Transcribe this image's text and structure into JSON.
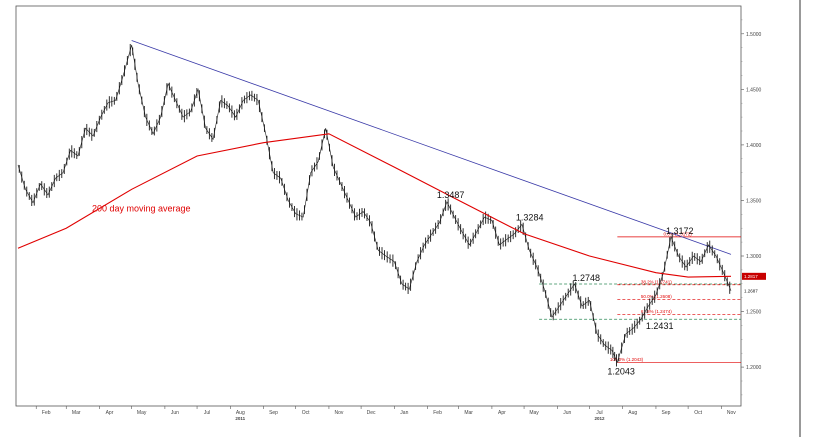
{
  "chart_data": {
    "type": "line",
    "subtype": "ohlc-price",
    "title": "",
    "xlabel": "",
    "ylabel": "",
    "ylim": [
      1.165,
      1.525
    ],
    "y_ticks": [
      "1.5000",
      "1.4500",
      "1.4000",
      "1.3500",
      "1.3000",
      "1.2500",
      "1.2000"
    ],
    "x_ticks": [
      "Feb",
      "Mar",
      "Apr",
      "May",
      "Jun",
      "Jul",
      "Aug",
      "Sep",
      "Oct",
      "Nov",
      "Dec",
      "Jan",
      "Feb",
      "Mar",
      "Apr",
      "May",
      "Jun",
      "Jul",
      "Aug",
      "Sep",
      "Oct",
      "Nov"
    ],
    "x_years": [
      {
        "label": "2011",
        "under": 6
      },
      {
        "label": "2012",
        "under": 17
      }
    ],
    "x_domain": [
      "2011-01-15",
      "2012-11-10"
    ],
    "grid": false,
    "legend": "none",
    "colors": {
      "price": "#1a1a1a",
      "ma": "#e00000",
      "trend": "#3a3aa8",
      "fib": "#e00000",
      "support": "#2e8b57",
      "tag_bg": "#c80000"
    },
    "price_path": [
      [
        "2011-01-15",
        1.382
      ],
      [
        "2011-01-22",
        1.36
      ],
      [
        "2011-01-29",
        1.348
      ],
      [
        "2011-02-05",
        1.365
      ],
      [
        "2011-02-12",
        1.355
      ],
      [
        "2011-02-19",
        1.37
      ],
      [
        "2011-02-26",
        1.375
      ],
      [
        "2011-03-05",
        1.395
      ],
      [
        "2011-03-12",
        1.39
      ],
      [
        "2011-03-19",
        1.415
      ],
      [
        "2011-03-26",
        1.408
      ],
      [
        "2011-04-02",
        1.425
      ],
      [
        "2011-04-09",
        1.438
      ],
      [
        "2011-04-16",
        1.44
      ],
      [
        "2011-04-23",
        1.462
      ],
      [
        "2011-05-01",
        1.49
      ],
      [
        "2011-05-07",
        1.455
      ],
      [
        "2011-05-14",
        1.425
      ],
      [
        "2011-05-21",
        1.41
      ],
      [
        "2011-05-28",
        1.425
      ],
      [
        "2011-06-04",
        1.455
      ],
      [
        "2011-06-11",
        1.44
      ],
      [
        "2011-06-18",
        1.425
      ],
      [
        "2011-06-25",
        1.43
      ],
      [
        "2011-07-02",
        1.45
      ],
      [
        "2011-07-09",
        1.415
      ],
      [
        "2011-07-16",
        1.405
      ],
      [
        "2011-07-23",
        1.44
      ],
      [
        "2011-07-30",
        1.435
      ],
      [
        "2011-08-06",
        1.425
      ],
      [
        "2011-08-13",
        1.44
      ],
      [
        "2011-08-20",
        1.445
      ],
      [
        "2011-08-27",
        1.44
      ],
      [
        "2011-09-03",
        1.41
      ],
      [
        "2011-09-10",
        1.375
      ],
      [
        "2011-09-17",
        1.37
      ],
      [
        "2011-09-24",
        1.35
      ],
      [
        "2011-10-01",
        1.338
      ],
      [
        "2011-10-08",
        1.335
      ],
      [
        "2011-10-15",
        1.375
      ],
      [
        "2011-10-22",
        1.385
      ],
      [
        "2011-10-29",
        1.415
      ],
      [
        "2011-11-05",
        1.38
      ],
      [
        "2011-11-12",
        1.365
      ],
      [
        "2011-11-19",
        1.35
      ],
      [
        "2011-11-26",
        1.335
      ],
      [
        "2011-12-03",
        1.34
      ],
      [
        "2011-12-10",
        1.33
      ],
      [
        "2011-12-17",
        1.305
      ],
      [
        "2011-12-24",
        1.3
      ],
      [
        "2012-01-01",
        1.295
      ],
      [
        "2012-01-08",
        1.275
      ],
      [
        "2012-01-15",
        1.27
      ],
      [
        "2012-01-22",
        1.295
      ],
      [
        "2012-01-29",
        1.31
      ],
      [
        "2012-02-05",
        1.32
      ],
      [
        "2012-02-12",
        1.33
      ],
      [
        "2012-02-19",
        1.3487
      ],
      [
        "2012-02-26",
        1.335
      ],
      [
        "2012-03-04",
        1.322
      ],
      [
        "2012-03-11",
        1.31
      ],
      [
        "2012-03-18",
        1.322
      ],
      [
        "2012-03-25",
        1.335
      ],
      [
        "2012-04-01",
        1.332
      ],
      [
        "2012-04-08",
        1.31
      ],
      [
        "2012-04-15",
        1.315
      ],
      [
        "2012-04-22",
        1.32
      ],
      [
        "2012-04-29",
        1.3284
      ],
      [
        "2012-05-06",
        1.305
      ],
      [
        "2012-05-13",
        1.29
      ],
      [
        "2012-05-20",
        1.27
      ],
      [
        "2012-05-27",
        1.245
      ],
      [
        "2012-06-03",
        1.255
      ],
      [
        "2012-06-10",
        1.265
      ],
      [
        "2012-06-17",
        1.2748
      ],
      [
        "2012-06-24",
        1.255
      ],
      [
        "2012-07-01",
        1.26
      ],
      [
        "2012-07-08",
        1.23
      ],
      [
        "2012-07-15",
        1.22
      ],
      [
        "2012-07-22",
        1.215
      ],
      [
        "2012-07-27",
        1.2043
      ],
      [
        "2012-08-04",
        1.23
      ],
      [
        "2012-08-11",
        1.235
      ],
      [
        "2012-08-18",
        1.2431
      ],
      [
        "2012-08-25",
        1.255
      ],
      [
        "2012-09-01",
        1.265
      ],
      [
        "2012-09-08",
        1.285
      ],
      [
        "2012-09-15",
        1.3172
      ],
      [
        "2012-09-22",
        1.3
      ],
      [
        "2012-09-29",
        1.29
      ],
      [
        "2012-10-06",
        1.3
      ],
      [
        "2012-10-13",
        1.295
      ],
      [
        "2012-10-20",
        1.31
      ],
      [
        "2012-10-27",
        1.3
      ],
      [
        "2012-11-03",
        1.285
      ],
      [
        "2012-11-10",
        1.2687
      ]
    ],
    "series": [
      {
        "name": "200 day moving average",
        "values": [
          [
            "2011-01-15",
            1.307
          ],
          [
            "2011-03-01",
            1.325
          ],
          [
            "2011-05-01",
            1.36
          ],
          [
            "2011-07-01",
            1.39
          ],
          [
            "2011-09-01",
            1.402
          ],
          [
            "2011-11-01",
            1.41
          ],
          [
            "2012-01-01",
            1.38
          ],
          [
            "2012-03-01",
            1.35
          ],
          [
            "2012-05-01",
            1.32
          ],
          [
            "2012-07-01",
            1.3
          ],
          [
            "2012-09-01",
            1.285
          ],
          [
            "2012-10-01",
            1.281
          ],
          [
            "2012-11-10",
            1.2817
          ]
        ]
      }
    ],
    "trendline": {
      "from": [
        "2011-05-01",
        1.4939
      ],
      "to": [
        "2012-11-10",
        1.3015
      ]
    },
    "fib_levels": [
      {
        "label": "0.0% (1.3172)",
        "value": 1.3172
      },
      {
        "label": "38.2% (1.2741)",
        "value": 1.2741
      },
      {
        "label": "50.0% (1.2608)",
        "value": 1.2608
      },
      {
        "label": "61.8% (1.2474)",
        "value": 1.2474
      },
      {
        "label": "100.0% (1.2043)",
        "value": 1.2043
      }
    ],
    "support_lines": [
      {
        "value": 1.2748,
        "from": "2012-05-15"
      },
      {
        "value": 1.2431,
        "from": "2012-05-15"
      }
    ],
    "annotations": [
      {
        "text": "1.3487",
        "x": "2012-02-19",
        "y": 1.3487
      },
      {
        "text": "1.3284",
        "x": "2012-04-29",
        "y": 1.3284
      },
      {
        "text": "1.2748",
        "x": "2012-06-17",
        "y": 1.2748
      },
      {
        "text": "1.2431",
        "x": "2012-08-18",
        "y": 1.2431
      },
      {
        "text": "1.2043",
        "x": "2012-07-27",
        "y": 1.2043
      },
      {
        "text": "1.3172",
        "x": "2012-09-15",
        "y": 1.3172
      }
    ],
    "ma_label": {
      "text": "200 day moving average",
      "x": "2011-03-25",
      "y": 1.34
    },
    "last_value_tags": [
      {
        "text": "1.2817",
        "value": 1.2817,
        "style": "filled"
      },
      {
        "text": "1.2687",
        "value": 1.2687,
        "style": "plain"
      }
    ]
  }
}
